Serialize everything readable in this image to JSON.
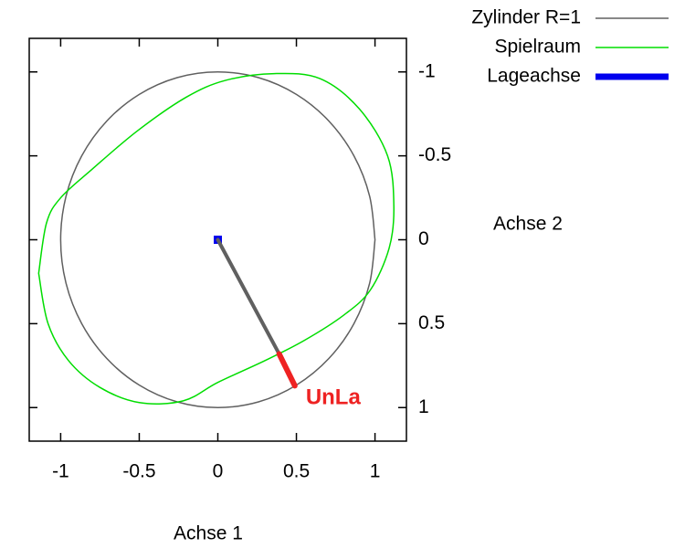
{
  "chart_data": {
    "type": "line",
    "x_label": "Achse 1",
    "y_label": "Achse 2",
    "xlim": [
      -1.2,
      1.2
    ],
    "ylim": [
      -1.2,
      1.2
    ],
    "y_reversed": true,
    "y_axis_side": "right",
    "xticks": [
      -1,
      -0.5,
      0,
      0.5,
      1
    ],
    "yticks": [
      -1,
      -0.5,
      0,
      0.5,
      1
    ],
    "legend": "outside-top-right",
    "series": [
      {
        "name": "Zylinder R=1",
        "color": "#606060",
        "x": [
          1,
          0.966,
          0.866,
          0.707,
          0.5,
          0.259,
          0,
          -0.259,
          -0.5,
          -0.707,
          -0.866,
          -0.966,
          -1,
          -0.966,
          -0.866,
          -0.707,
          -0.5,
          -0.259,
          0,
          0.259,
          0.5,
          0.707,
          0.866,
          0.966,
          1
        ],
        "y": [
          0,
          0.259,
          0.5,
          0.707,
          0.866,
          0.966,
          1,
          0.966,
          0.866,
          0.707,
          0.5,
          0.259,
          0,
          -0.259,
          -0.5,
          -0.707,
          -0.866,
          -0.966,
          -1,
          -0.966,
          -0.866,
          -0.707,
          -0.5,
          -0.259,
          0
        ]
      },
      {
        "name": "Spielraum",
        "color": "#00dd00",
        "x": [
          -1.14,
          -1.09,
          -1.0,
          -0.8,
          -0.51,
          -0.2,
          0.05,
          0.36,
          0.65,
          0.9,
          1.08,
          1.12,
          1.09,
          0.97,
          0.8,
          0.55,
          0.3,
          0.0,
          -0.22,
          -0.5,
          -0.75,
          -0.95,
          -1.08,
          -1.14
        ],
        "y": [
          0.2,
          -0.1,
          -0.25,
          -0.42,
          -0.65,
          -0.85,
          -0.95,
          -0.99,
          -0.96,
          -0.78,
          -0.5,
          -0.2,
          0.05,
          0.3,
          0.45,
          0.6,
          0.72,
          0.85,
          0.96,
          0.97,
          0.88,
          0.72,
          0.5,
          0.2
        ]
      },
      {
        "name": "Lageachse",
        "color": "#0000ee",
        "x": [
          0
        ],
        "y": [
          0
        ]
      },
      {
        "color": "#606060",
        "x": [
          0,
          0.39
        ],
        "y": [
          0,
          0.68
        ]
      },
      {
        "color": "#ee2222",
        "label": "UnLa",
        "x": [
          0.39,
          0.49
        ],
        "y": [
          0.68,
          0.87
        ]
      }
    ]
  }
}
